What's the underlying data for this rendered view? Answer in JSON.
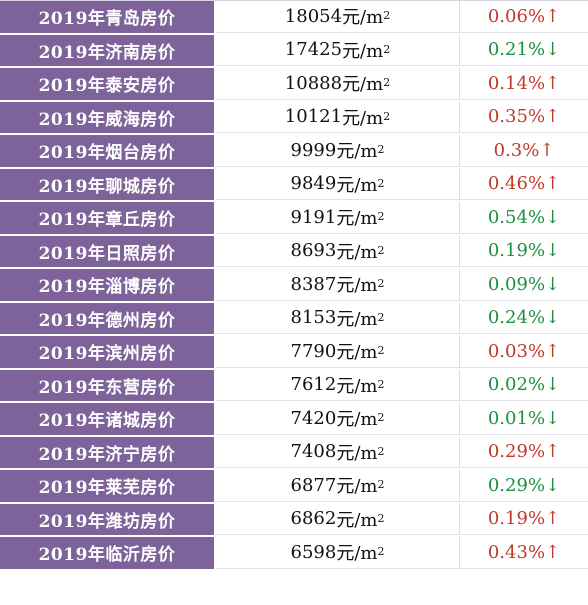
{
  "unit_prefix": "元/m",
  "unit_sup": "2",
  "rows": [
    {
      "city": "2019年青岛房价",
      "price": "18054",
      "change": "0.06%",
      "arrow": "↑",
      "dir": "up"
    },
    {
      "city": "2019年济南房价",
      "price": "17425",
      "change": "0.21%",
      "arrow": "↓",
      "dir": "down"
    },
    {
      "city": "2019年泰安房价",
      "price": "10888",
      "change": "0.14%",
      "arrow": "↑",
      "dir": "up"
    },
    {
      "city": "2019年威海房价",
      "price": "10121",
      "change": "0.35%",
      "arrow": "↑",
      "dir": "up"
    },
    {
      "city": "2019年烟台房价",
      "price": "9999",
      "change": "0.3%",
      "arrow": "↑",
      "dir": "up"
    },
    {
      "city": "2019年聊城房价",
      "price": "9849",
      "change": "0.46%",
      "arrow": "↑",
      "dir": "up"
    },
    {
      "city": "2019年章丘房价",
      "price": "9191",
      "change": "0.54%",
      "arrow": "↓",
      "dir": "down"
    },
    {
      "city": "2019年日照房价",
      "price": "8693",
      "change": "0.19%",
      "arrow": "↓",
      "dir": "down"
    },
    {
      "city": "2019年淄博房价",
      "price": "8387",
      "change": "0.09%",
      "arrow": "↓",
      "dir": "down"
    },
    {
      "city": "2019年德州房价",
      "price": "8153",
      "change": "0.24%",
      "arrow": "↓",
      "dir": "down"
    },
    {
      "city": "2019年滨州房价",
      "price": "7790",
      "change": "0.03%",
      "arrow": "↑",
      "dir": "up"
    },
    {
      "city": "2019年东营房价",
      "price": "7612",
      "change": "0.02%",
      "arrow": "↓",
      "dir": "down"
    },
    {
      "city": "2019年诸城房价",
      "price": "7420",
      "change": "0.01%",
      "arrow": "↓",
      "dir": "down"
    },
    {
      "city": "2019年济宁房价",
      "price": "7408",
      "change": "0.29%",
      "arrow": "↑",
      "dir": "up"
    },
    {
      "city": "2019年莱芜房价",
      "price": "6877",
      "change": "0.29%",
      "arrow": "↓",
      "dir": "down"
    },
    {
      "city": "2019年潍坊房价",
      "price": "6862",
      "change": "0.19%",
      "arrow": "↑",
      "dir": "up"
    },
    {
      "city": "2019年临沂房价",
      "price": "6598",
      "change": "0.43%",
      "arrow": "↑",
      "dir": "up"
    }
  ],
  "colors": {
    "city_bg": "#7e639a",
    "up": "#c0392b",
    "down": "#1f8f3f"
  }
}
